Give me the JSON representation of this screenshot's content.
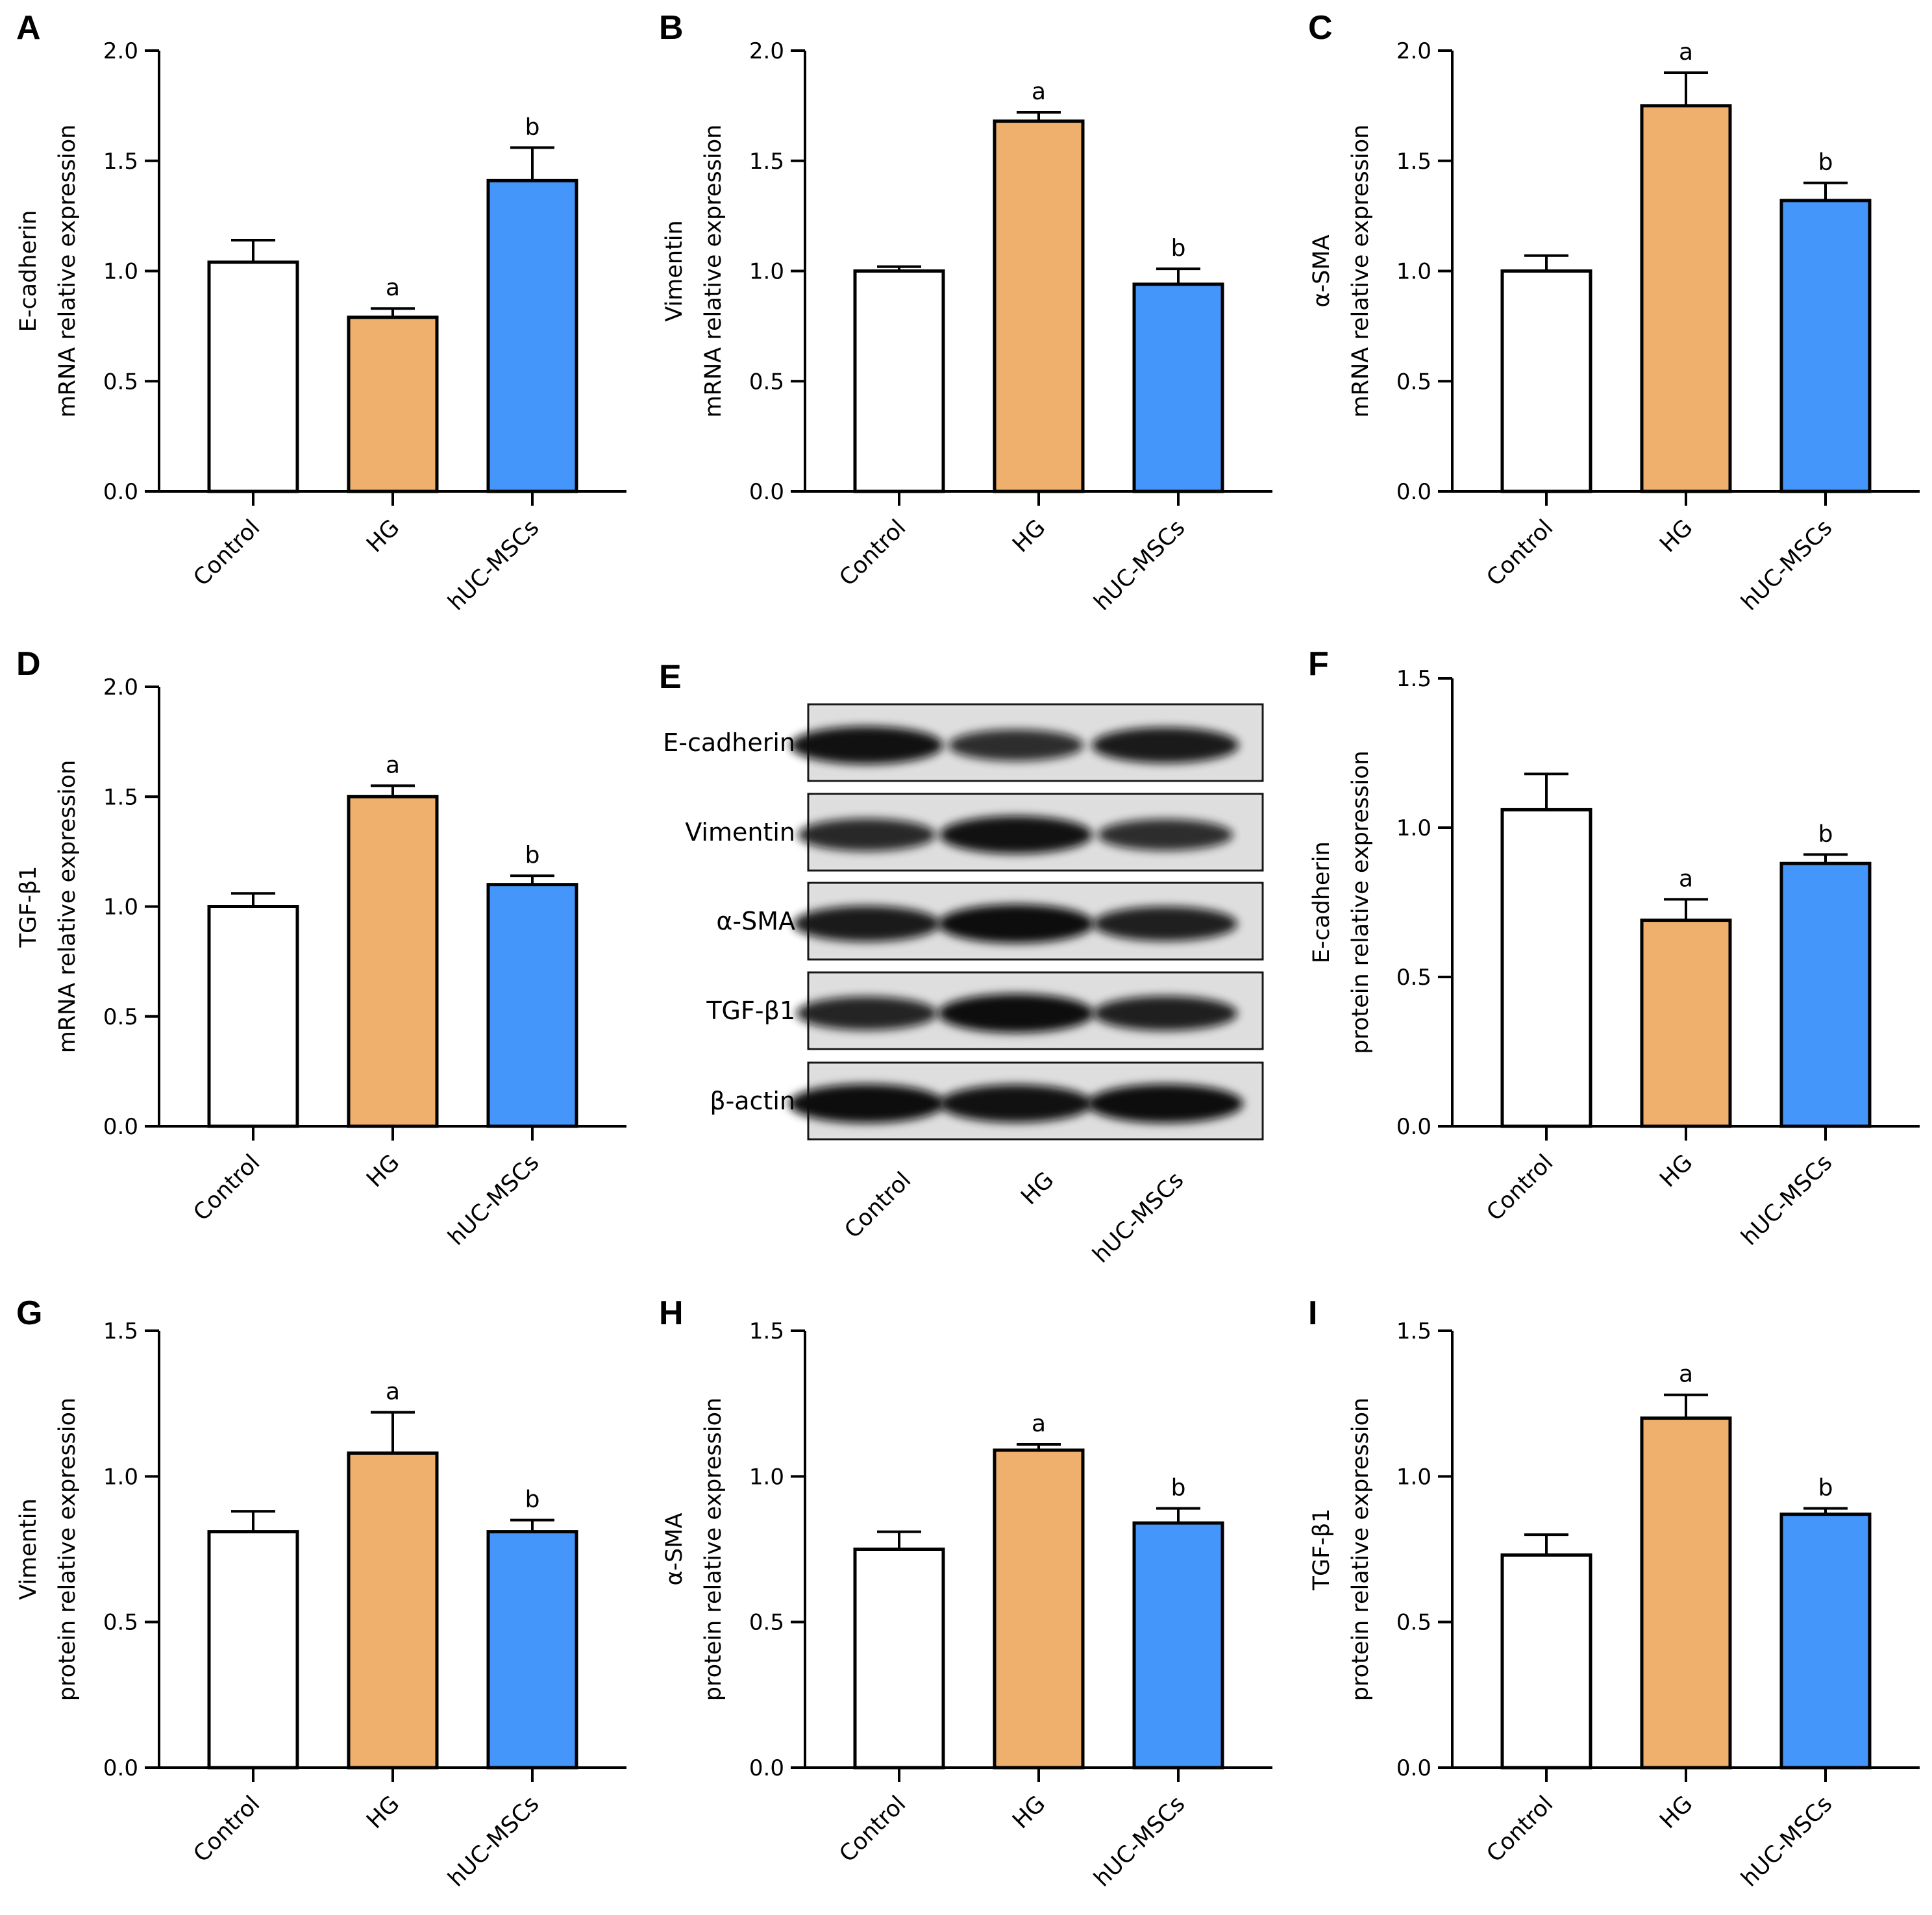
{
  "colors": {
    "control": "#ffffff",
    "hg": "#efb06e",
    "huc": "#4596fa",
    "axis": "#000000"
  },
  "chart_data": [
    {
      "panel": "A",
      "type": "bar",
      "categories": [
        "Control",
        "HG",
        "hUC-MSCs"
      ],
      "values": [
        1.04,
        0.79,
        1.41
      ],
      "errors": [
        0.1,
        0.04,
        0.15
      ],
      "significance": [
        "",
        "a",
        "b"
      ],
      "ylabel": [
        "E-cadherin",
        "mRNA relative expression"
      ],
      "ylim": [
        0,
        2.0
      ],
      "yticks": [
        "0.0",
        "0.5",
        "1.0",
        "1.5",
        "2.0"
      ]
    },
    {
      "panel": "B",
      "type": "bar",
      "categories": [
        "Control",
        "HG",
        "hUC-MSCs"
      ],
      "values": [
        1.0,
        1.68,
        0.94
      ],
      "errors": [
        0.02,
        0.04,
        0.07
      ],
      "significance": [
        "",
        "a",
        "b"
      ],
      "ylabel": [
        "Vimentin",
        "mRNA relative expression"
      ],
      "ylim": [
        0,
        2.0
      ],
      "yticks": [
        "0.0",
        "0.5",
        "1.0",
        "1.5",
        "2.0"
      ]
    },
    {
      "panel": "C",
      "type": "bar",
      "categories": [
        "Control",
        "HG",
        "hUC-MSCs"
      ],
      "values": [
        1.0,
        1.75,
        1.32
      ],
      "errors": [
        0.07,
        0.15,
        0.08
      ],
      "significance": [
        "",
        "a",
        "b"
      ],
      "ylabel": [
        "α-SMA",
        "mRNA relative expression"
      ],
      "ylim": [
        0,
        2.0
      ],
      "yticks": [
        "0.0",
        "0.5",
        "1.0",
        "1.5",
        "2.0"
      ]
    },
    {
      "panel": "D",
      "type": "bar",
      "categories": [
        "Control",
        "HG",
        "hUC-MSCs"
      ],
      "values": [
        1.0,
        1.5,
        1.1
      ],
      "errors": [
        0.06,
        0.05,
        0.04
      ],
      "significance": [
        "",
        "a",
        "b"
      ],
      "ylabel": [
        "TGF-β1",
        "mRNA relative expression"
      ],
      "ylim": [
        0,
        2.0
      ],
      "yticks": [
        "0.0",
        "0.5",
        "1.0",
        "1.5",
        "2.0"
      ]
    },
    {
      "panel": "F",
      "type": "bar",
      "categories": [
        "Control",
        "HG",
        "hUC-MSCs"
      ],
      "values": [
        1.06,
        0.69,
        0.88
      ],
      "errors": [
        0.12,
        0.07,
        0.03
      ],
      "significance": [
        "",
        "a",
        "b"
      ],
      "ylabel": [
        "E-cadherin",
        "protein relative expression"
      ],
      "ylim": [
        0,
        1.5
      ],
      "yticks": [
        "0.0",
        "0.5",
        "1.0",
        "1.5"
      ]
    },
    {
      "panel": "G",
      "type": "bar",
      "categories": [
        "Control",
        "HG",
        "hUC-MSCs"
      ],
      "values": [
        0.81,
        1.08,
        0.81
      ],
      "errors": [
        0.07,
        0.14,
        0.04
      ],
      "significance": [
        "",
        "a",
        "b"
      ],
      "ylabel": [
        "Vimentin",
        "protein relative expression"
      ],
      "ylim": [
        0,
        1.5
      ],
      "yticks": [
        "0.0",
        "0.5",
        "1.0",
        "1.5"
      ]
    },
    {
      "panel": "H",
      "type": "bar",
      "categories": [
        "Control",
        "HG",
        "hUC-MSCs"
      ],
      "values": [
        0.75,
        1.09,
        0.84
      ],
      "errors": [
        0.06,
        0.02,
        0.05
      ],
      "significance": [
        "",
        "a",
        "b"
      ],
      "ylabel": [
        "α-SMA",
        "protein relative expression"
      ],
      "ylim": [
        0,
        1.5
      ],
      "yticks": [
        "0.0",
        "0.5",
        "1.0",
        "1.5"
      ]
    },
    {
      "panel": "I",
      "type": "bar",
      "categories": [
        "Control",
        "HG",
        "hUC-MSCs"
      ],
      "values": [
        0.73,
        1.2,
        0.87
      ],
      "errors": [
        0.07,
        0.08,
        0.02
      ],
      "significance": [
        "",
        "a",
        "b"
      ],
      "ylabel": [
        "TGF-β1",
        "protein relative expression"
      ],
      "ylim": [
        0,
        1.5
      ],
      "yticks": [
        "0.0",
        "0.5",
        "1.0",
        "1.5"
      ]
    }
  ],
  "western_blot": {
    "panel": "E",
    "rows": [
      "E-cadherin",
      "Vimentin",
      "α-SMA",
      "TGF-β1",
      "β-actin"
    ],
    "lanes": [
      "Control",
      "HG",
      "hUC-MSCs"
    ],
    "band_intensity": [
      [
        0.95,
        0.65,
        0.85
      ],
      [
        0.7,
        0.95,
        0.65
      ],
      [
        0.85,
        1.0,
        0.8
      ],
      [
        0.75,
        1.0,
        0.8
      ],
      [
        1.0,
        0.95,
        1.0
      ]
    ]
  }
}
